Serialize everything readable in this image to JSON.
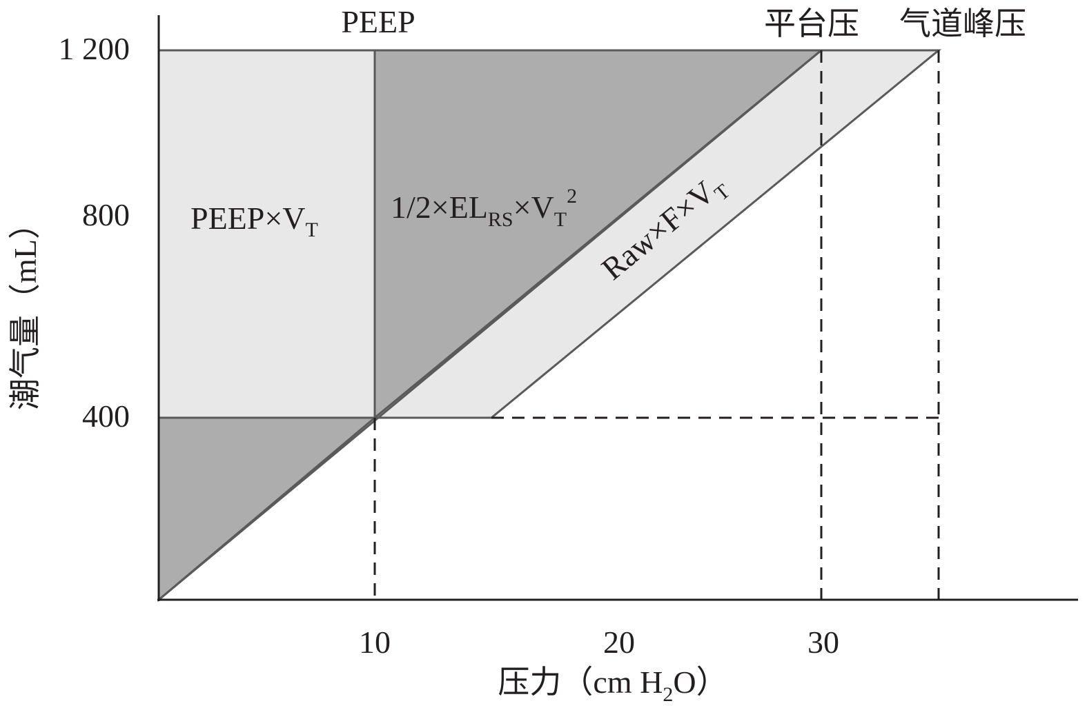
{
  "diagram": {
    "x_axis": {
      "label_prefix": "压力（cm H",
      "label_sub": "2",
      "label_suffix": "O）",
      "ticks": [
        "10",
        "20",
        "30"
      ]
    },
    "y_axis": {
      "label": "潮气量（mL）",
      "ticks": [
        "400",
        "800",
        "1 200"
      ]
    },
    "top_labels": {
      "peep": "PEEP",
      "plateau": "平台压",
      "peak": "气道峰压"
    },
    "regions": {
      "peep_work": {
        "main": "PEEP×V",
        "sub": "T"
      },
      "elastic_work": {
        "pre": "1/2×EL",
        "sub1": "RS",
        "mid": "×V",
        "sub2": "T",
        "sup": "2"
      },
      "resistive_work": {
        "main": "Raw×F×V",
        "sub": "T"
      }
    },
    "colors": {
      "light_fill": "#e8e8e8",
      "dark_fill": "#adadad",
      "line": "#5a5a5a",
      "axis": "#231f20"
    }
  }
}
